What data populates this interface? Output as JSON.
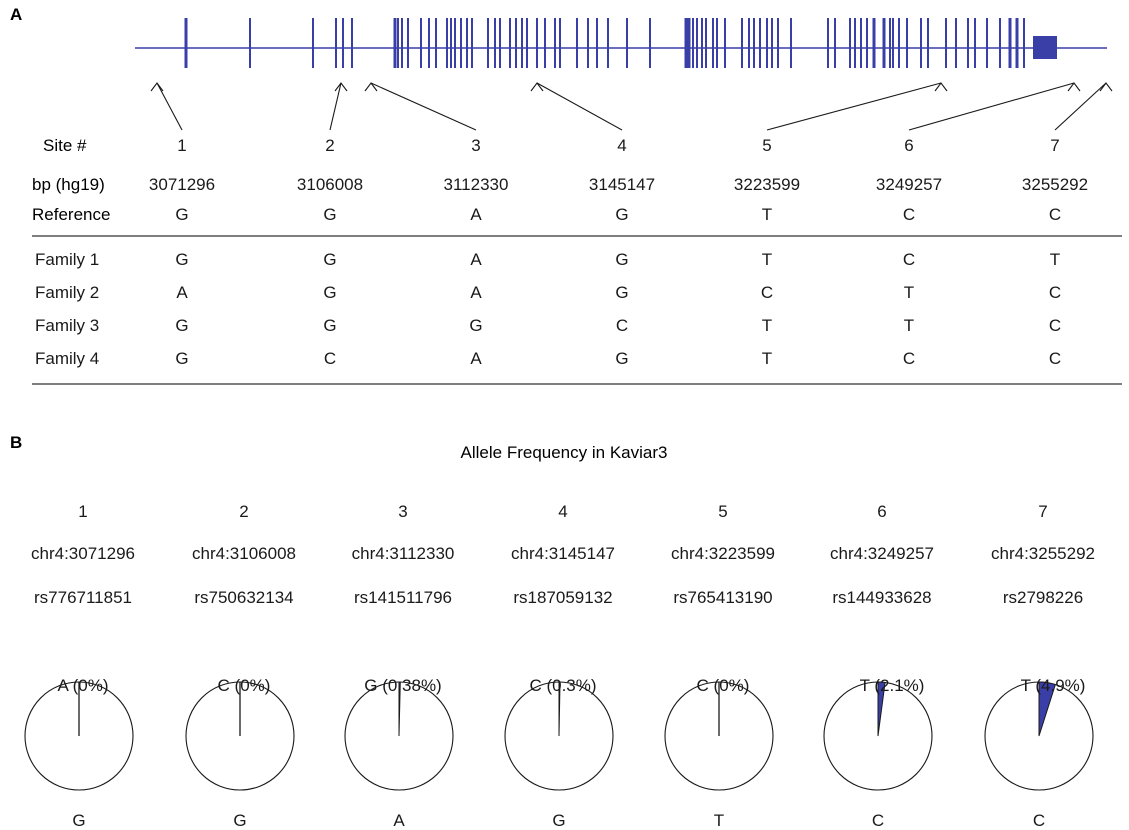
{
  "panel_a": {
    "label": "A",
    "row_labels": {
      "site": "Site #",
      "bp": "bp (hg19)",
      "reference": "Reference"
    },
    "sites": [
      {
        "num": "1",
        "bp": "3071296",
        "ref": "G"
      },
      {
        "num": "2",
        "bp": "3106008",
        "ref": "G"
      },
      {
        "num": "3",
        "bp": "3112330",
        "ref": "A"
      },
      {
        "num": "4",
        "bp": "3145147",
        "ref": "G"
      },
      {
        "num": "5",
        "bp": "3223599",
        "ref": "T"
      },
      {
        "num": "6",
        "bp": "3249257",
        "ref": "C"
      },
      {
        "num": "7",
        "bp": "3255292",
        "ref": "C"
      }
    ],
    "families": [
      {
        "name": "Family 1",
        "alleles": [
          "G",
          "G",
          "A",
          "G",
          "T",
          "C",
          "T"
        ]
      },
      {
        "name": "Family 2",
        "alleles": [
          "A",
          "G",
          "A",
          "G",
          "C",
          "T",
          "C"
        ]
      },
      {
        "name": "Family 3",
        "alleles": [
          "G",
          "G",
          "G",
          "C",
          "T",
          "T",
          "C"
        ]
      },
      {
        "name": "Family 4",
        "alleles": [
          "G",
          "C",
          "A",
          "G",
          "T",
          "C",
          "C"
        ]
      }
    ]
  },
  "panel_b": {
    "label": "B",
    "title": "Allele Frequency in Kaviar3",
    "sites": [
      {
        "num": "1",
        "locus": "chr4:3071296",
        "rsid": "rs776711851",
        "alt_label": "A (0%)",
        "ref_allele": "G",
        "alt_fraction": 0
      },
      {
        "num": "2",
        "locus": "chr4:3106008",
        "rsid": "rs750632134",
        "alt_label": "C (0%)",
        "ref_allele": "G",
        "alt_fraction": 0
      },
      {
        "num": "3",
        "locus": "chr4:3112330",
        "rsid": "rs141511796",
        "alt_label": "G (0.38%)",
        "ref_allele": "A",
        "alt_fraction": 0.0038
      },
      {
        "num": "4",
        "locus": "chr4:3145147",
        "rsid": "rs187059132",
        "alt_label": "C (0.3%)",
        "ref_allele": "G",
        "alt_fraction": 0.003
      },
      {
        "num": "5",
        "locus": "chr4:3223599",
        "rsid": "rs765413190",
        "alt_label": "C (0%)",
        "ref_allele": "T",
        "alt_fraction": 0
      },
      {
        "num": "6",
        "locus": "chr4:3249257",
        "rsid": "rs144933628",
        "alt_label": "T (2.1%)",
        "ref_allele": "C",
        "alt_fraction": 0.021
      },
      {
        "num": "7",
        "locus": "chr4:3255292",
        "rsid": "rs2798226",
        "alt_label": "T (4.9%)",
        "ref_allele": "C",
        "alt_fraction": 0.049
      }
    ]
  },
  "colors": {
    "gene": "#3a3fa8",
    "pie_slice": "#3a3fa8",
    "ink": "#1a1a1a",
    "rule": "#333333"
  }
}
